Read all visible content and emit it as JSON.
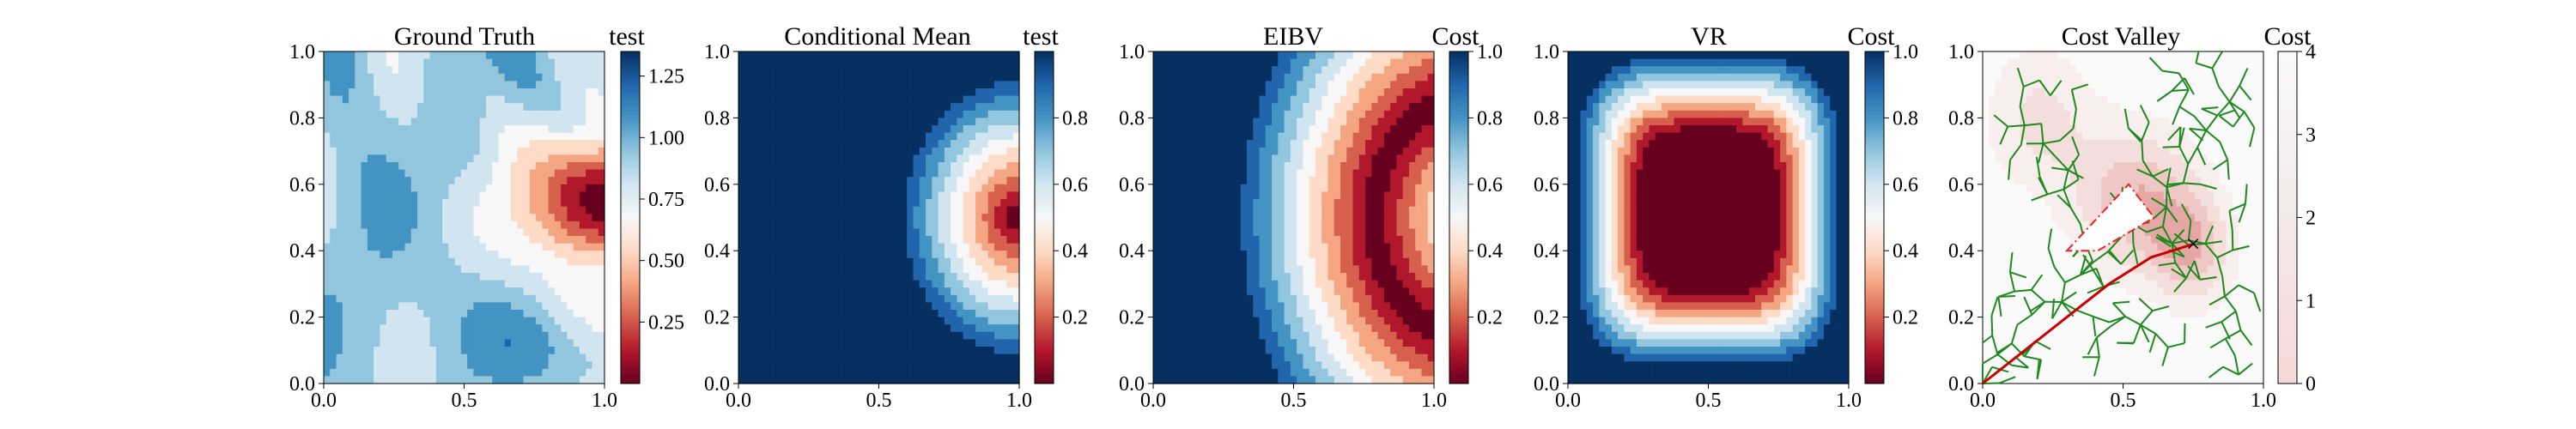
{
  "chart_data": [
    {
      "type": "heatmap",
      "title": "Ground Truth",
      "colorbar_label": "test",
      "colormap": "RdBu",
      "field": "ground_truth",
      "xlim": [
        0,
        1
      ],
      "ylim": [
        0,
        1
      ],
      "x_ticks": [
        "0.0",
        "0.5",
        "1.0"
      ],
      "y_ticks": [
        "0.0",
        "0.2",
        "0.4",
        "0.6",
        "0.8",
        "1.0"
      ],
      "colorbar_range": [
        0.0,
        1.35
      ],
      "colorbar_ticks": [
        {
          "v": 0.25,
          "label": "0.25"
        },
        {
          "v": 0.5,
          "label": "0.50"
        },
        {
          "v": 0.75,
          "label": "0.75"
        },
        {
          "v": 1.0,
          "label": "1.00"
        },
        {
          "v": 1.25,
          "label": "1.25"
        }
      ]
    },
    {
      "type": "heatmap",
      "title": "Conditional Mean",
      "colorbar_label": "test",
      "colormap": "RdBu",
      "field": "conditional_mean",
      "xlim": [
        0,
        1
      ],
      "ylim": [
        0,
        1
      ],
      "x_ticks": [
        "0.0",
        "0.5",
        "1.0"
      ],
      "y_ticks": [
        "0.0",
        "0.2",
        "0.4",
        "0.6",
        "0.8",
        "1.0"
      ],
      "colorbar_range": [
        0.0,
        1.0
      ],
      "colorbar_ticks": [
        {
          "v": 0.2,
          "label": "0.2"
        },
        {
          "v": 0.4,
          "label": "0.4"
        },
        {
          "v": 0.6,
          "label": "0.6"
        },
        {
          "v": 0.8,
          "label": "0.8"
        }
      ]
    },
    {
      "type": "heatmap",
      "title": "EIBV",
      "colorbar_label": "Cost",
      "colormap": "RdBu",
      "field": "eibv",
      "xlim": [
        0,
        1
      ],
      "ylim": [
        0,
        1
      ],
      "x_ticks": [
        "0.0",
        "0.5",
        "1.0"
      ],
      "y_ticks": [
        "0.0",
        "0.2",
        "0.4",
        "0.6",
        "0.8",
        "1.0"
      ],
      "colorbar_range": [
        0.0,
        1.0
      ],
      "colorbar_ticks": [
        {
          "v": 0.2,
          "label": "0.2"
        },
        {
          "v": 0.4,
          "label": "0.4"
        },
        {
          "v": 0.6,
          "label": "0.6"
        },
        {
          "v": 0.8,
          "label": "0.8"
        },
        {
          "v": 1.0,
          "label": "1.0"
        }
      ]
    },
    {
      "type": "heatmap",
      "title": "VR",
      "colorbar_label": "Cost",
      "colormap": "RdBu",
      "field": "vr",
      "xlim": [
        0,
        1
      ],
      "ylim": [
        0,
        1
      ],
      "x_ticks": [
        "0.0",
        "0.5",
        "1.0"
      ],
      "y_ticks": [
        "0.0",
        "0.2",
        "0.4",
        "0.6",
        "0.8",
        "1.0"
      ],
      "colorbar_range": [
        0.0,
        1.0
      ],
      "colorbar_ticks": [
        {
          "v": 0.2,
          "label": "0.2"
        },
        {
          "v": 0.4,
          "label": "0.4"
        },
        {
          "v": 0.6,
          "label": "0.6"
        },
        {
          "v": 0.8,
          "label": "0.8"
        },
        {
          "v": 1.0,
          "label": "1.0"
        }
      ]
    },
    {
      "type": "heatmap",
      "title": "Cost Valley",
      "colorbar_label": "Cost",
      "colormap": "Reds_r",
      "field": "cost_valley",
      "xlim": [
        0,
        1
      ],
      "ylim": [
        0,
        1
      ],
      "x_ticks": [
        "0.0",
        "0.5",
        "1.0"
      ],
      "y_ticks": [
        "0.0",
        "0.2",
        "0.4",
        "0.6",
        "0.8",
        "1.0"
      ],
      "colorbar_range": [
        0,
        4
      ],
      "colorbar_ticks": [
        {
          "v": 0,
          "label": "0"
        },
        {
          "v": 1,
          "label": "1"
        },
        {
          "v": 2,
          "label": "2"
        },
        {
          "v": 3,
          "label": "3"
        },
        {
          "v": 4,
          "label": "4"
        }
      ],
      "obstacle_polygon": [
        [
          0.3,
          0.4
        ],
        [
          0.52,
          0.6
        ],
        [
          0.61,
          0.5
        ],
        [
          0.41,
          0.4
        ]
      ],
      "path": [
        [
          0.0,
          0.0
        ],
        [
          0.15,
          0.1
        ],
        [
          0.3,
          0.2
        ],
        [
          0.45,
          0.3
        ],
        [
          0.6,
          0.38
        ],
        [
          0.75,
          0.42
        ]
      ],
      "target_marker": {
        "x": 0.75,
        "y": 0.42,
        "symbol": "×"
      },
      "colors": {
        "tree": "#1e8a1e",
        "path": "#cc0000",
        "obstacle": "#ee2222",
        "target": "#2222cc"
      }
    }
  ]
}
